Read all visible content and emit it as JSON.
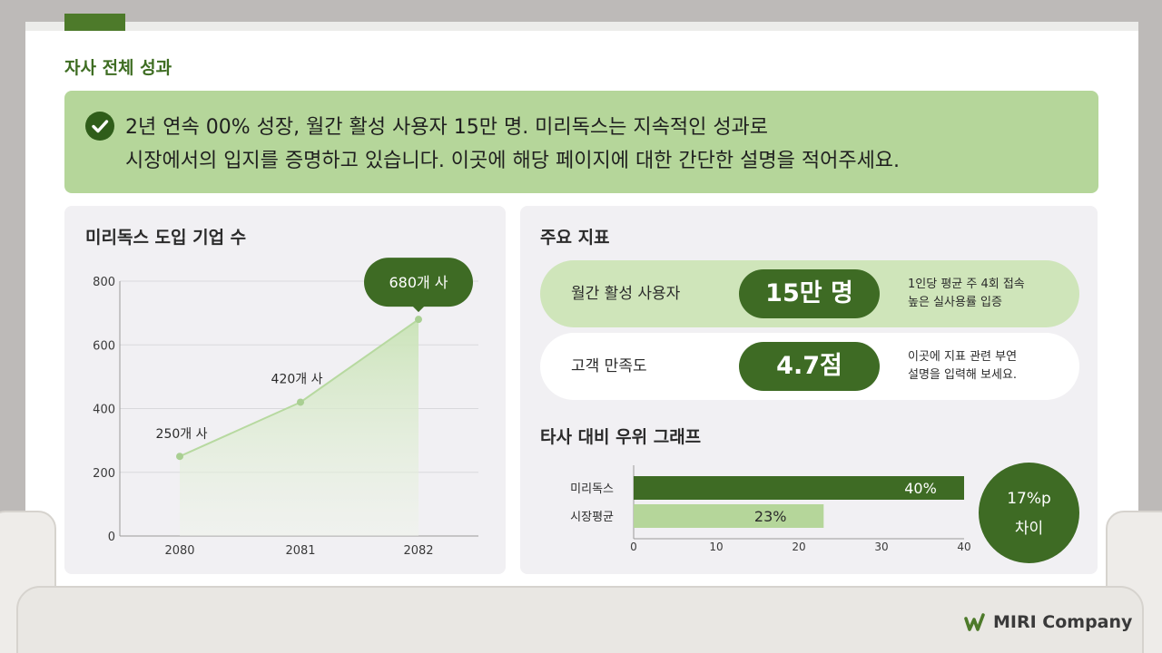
{
  "page": {
    "title": "자사 전체 성과"
  },
  "banner": {
    "line1": "2년 연속 00% 성장, 월간 활성 사용자 15만 명. 미리독스는 지속적인 성과로",
    "line2": "시장에서의 입지를 증명하고 있습니다. 이곳에 해당 페이지에 대한 간단한 설명을 적어주세요."
  },
  "left_panel": {
    "title": "미리독스 도입 기업 수"
  },
  "right_panel": {
    "title": "주요 지표",
    "metrics": [
      {
        "label": "월간 활성 사용자",
        "value": "15만 명",
        "note1": "1인당 평균 주 4회 접속",
        "note2": "높은 실사용률 입증"
      },
      {
        "label": "고객 만족도",
        "value": "4.7점",
        "note1": "이곳에 지표 관련 부연",
        "note2": "설명을 입력해 보세요."
      }
    ],
    "comparison_title": "타사 대비 우위 그래프",
    "difference_value": "17%p",
    "difference_label": "차이"
  },
  "brand": {
    "name": "MIRI Company"
  },
  "colors": {
    "dark_green": "#3e6b24",
    "light_green": "#b5d69a",
    "line_green": "#b7d9a0"
  },
  "chart_data": [
    {
      "type": "area",
      "title": "미리독스 도입 기업 수",
      "categories": [
        "2080",
        "2081",
        "2082"
      ],
      "series": [
        {
          "values": [
            250,
            420,
            680
          ],
          "labels": [
            "250개 사",
            "420개 사",
            "680개 사"
          ]
        }
      ],
      "ylim": [
        0,
        800
      ],
      "yticks": [
        0,
        200,
        400,
        600,
        800
      ],
      "grid": true,
      "highlight": "680개 사"
    },
    {
      "type": "bar",
      "orientation": "horizontal",
      "title": "타사 대비 우위 그래프",
      "categories": [
        "미리독스",
        "시장평균"
      ],
      "values": [
        40,
        23
      ],
      "labels": [
        "40%",
        "23%"
      ],
      "xlim": [
        0,
        40
      ],
      "xticks": [
        0,
        10,
        20,
        30,
        40
      ],
      "colors": [
        "#3e6b24",
        "#b5d69a"
      ]
    }
  ]
}
